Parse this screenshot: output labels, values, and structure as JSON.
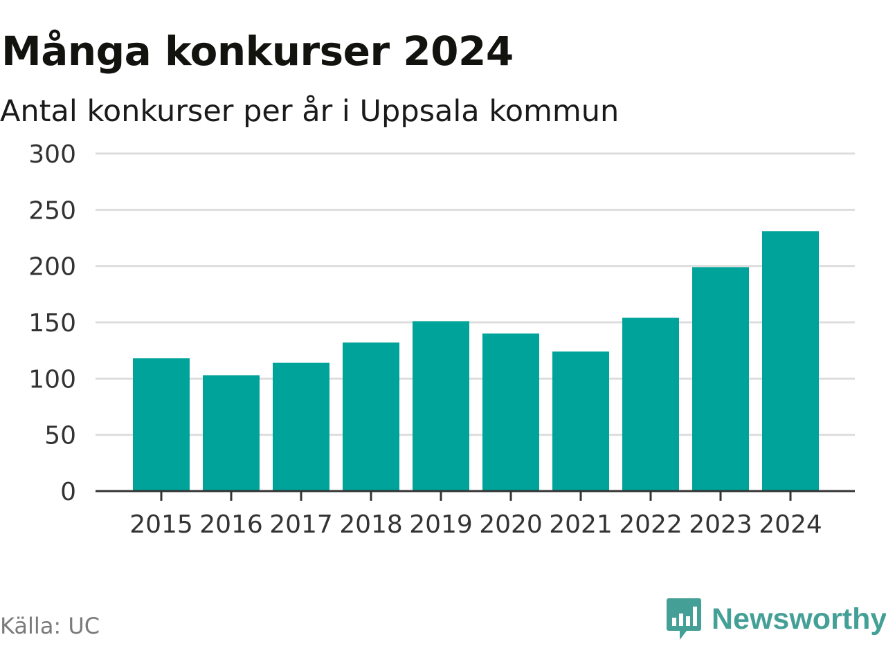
{
  "title": "Många konkurser 2024",
  "subtitle": "Antal konkurser per år i Uppsala kommun",
  "source": "Källa: UC",
  "brand": {
    "name": "Newsworthy",
    "icon": "newsworthy-logo-icon",
    "color": "#44a096"
  },
  "colors": {
    "bar": "#00a39a",
    "grid": "#dddddd",
    "axis": "#333333",
    "tick_text": "#333333"
  },
  "chart_data": {
    "type": "bar",
    "categories": [
      "2015",
      "2016",
      "2017",
      "2018",
      "2019",
      "2020",
      "2021",
      "2022",
      "2023",
      "2024"
    ],
    "values": [
      118,
      103,
      114,
      132,
      151,
      140,
      124,
      154,
      199,
      231
    ],
    "ylim": [
      0,
      300
    ],
    "yticks": [
      0,
      50,
      100,
      150,
      200,
      250,
      300
    ],
    "xlabel": "",
    "ylabel": "",
    "grid": true,
    "legend": "none"
  }
}
